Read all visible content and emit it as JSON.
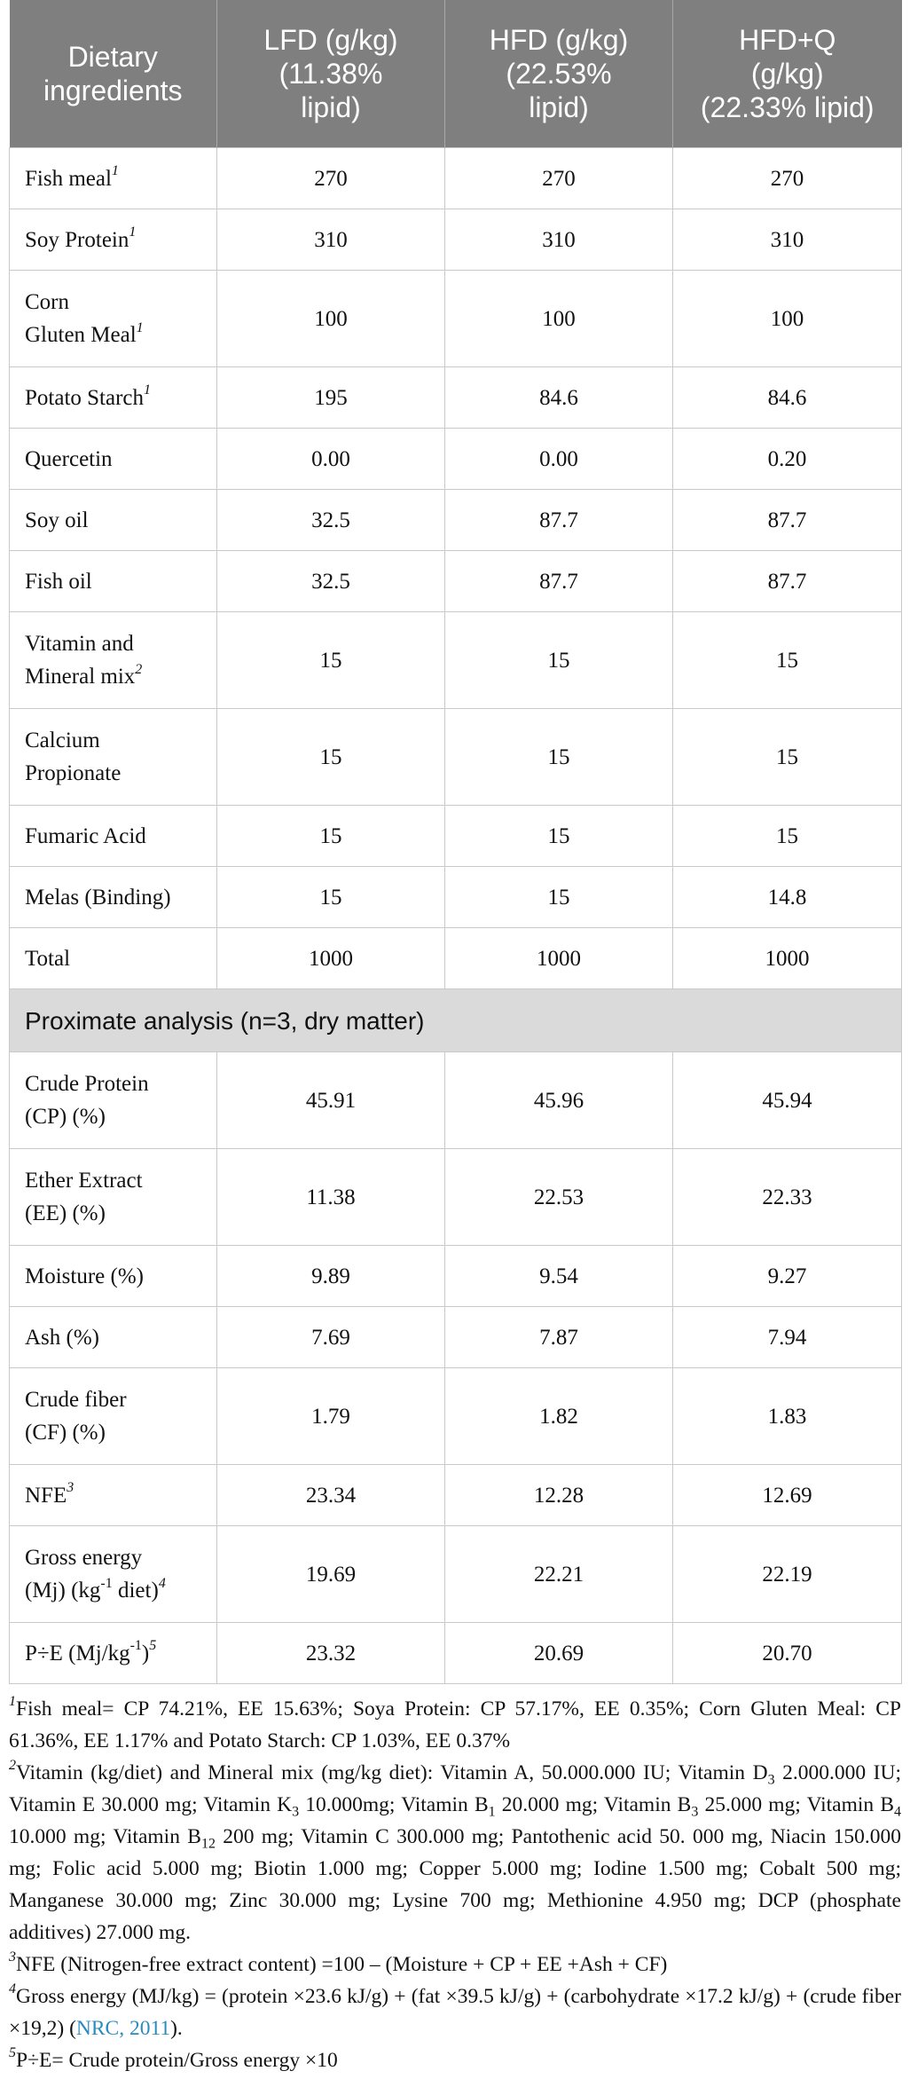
{
  "header": {
    "col1": [
      "Dietary",
      "ingredients"
    ],
    "col2": [
      "LFD (g/kg)",
      "(11.38%",
      "lipid)"
    ],
    "col3": [
      "HFD (g/kg)",
      "(22.53%",
      "lipid)"
    ],
    "col4": [
      "HFD+Q",
      "(g/kg)",
      "(22.33% lipid)"
    ]
  },
  "ingredients": [
    {
      "label": [
        "Fish meal"
      ],
      "sup": "1",
      "values": [
        "270",
        "270",
        "270"
      ]
    },
    {
      "label": [
        "Soy Protein"
      ],
      "sup": "1",
      "values": [
        "310",
        "310",
        "310"
      ]
    },
    {
      "label": [
        "Corn",
        "Gluten Meal"
      ],
      "sup": "1",
      "values": [
        "100",
        "100",
        "100"
      ]
    },
    {
      "label": [
        "Potato Starch"
      ],
      "sup": "1",
      "values": [
        "195",
        "84.6",
        "84.6"
      ]
    },
    {
      "label": [
        "Quercetin"
      ],
      "sup": "",
      "values": [
        "0.00",
        "0.00",
        "0.20"
      ]
    },
    {
      "label": [
        "Soy oil"
      ],
      "sup": "",
      "values": [
        "32.5",
        "87.7",
        "87.7"
      ]
    },
    {
      "label": [
        "Fish oil"
      ],
      "sup": "",
      "values": [
        "32.5",
        "87.7",
        "87.7"
      ]
    },
    {
      "label": [
        "Vitamin and",
        "Mineral mix"
      ],
      "sup": "2",
      "values": [
        "15",
        "15",
        "15"
      ]
    },
    {
      "label": [
        "Calcium",
        "Propionate"
      ],
      "sup": "",
      "values": [
        "15",
        "15",
        "15"
      ]
    },
    {
      "label": [
        "Fumaric Acid"
      ],
      "sup": "",
      "values": [
        "15",
        "15",
        "15"
      ]
    },
    {
      "label": [
        "Melas (Binding)"
      ],
      "sup": "",
      "values": [
        "15",
        "15",
        "14.8"
      ]
    },
    {
      "label": [
        "Total"
      ],
      "sup": "",
      "values": [
        "1000",
        "1000",
        "1000"
      ]
    }
  ],
  "section_title": "Proximate analysis (n=3, dry matter)",
  "proximate": [
    {
      "label": [
        "Crude Protein",
        "(CP) (%)"
      ],
      "values": [
        "45.91",
        "45.96",
        "45.94"
      ]
    },
    {
      "label": [
        "Ether Extract",
        "(EE) (%)"
      ],
      "values": [
        "11.38",
        "22.53",
        "22.33"
      ]
    },
    {
      "label": [
        "Moisture (%)"
      ],
      "values": [
        "9.89",
        "9.54",
        "9.27"
      ]
    },
    {
      "label": [
        "Ash (%)"
      ],
      "values": [
        "7.69",
        "7.87",
        "7.94"
      ]
    },
    {
      "label": [
        "Crude fiber",
        "(CF) (%)"
      ],
      "values": [
        "1.79",
        "1.82",
        "1.83"
      ]
    },
    {
      "label_main": "NFE",
      "label_sup": "3",
      "values": [
        "23.34",
        "12.28",
        "12.69"
      ]
    },
    {
      "label_line1": "Gross energy",
      "label_line2a": "(Mj) (kg",
      "label_line2sup": "-1",
      "label_line2b": " diet)",
      "label_sup": "4",
      "values": [
        "19.69",
        "22.21",
        "22.19"
      ]
    },
    {
      "label_a": "P÷E (Mj/kg",
      "label_asup": "-1",
      "label_b": ")",
      "label_sup": "5",
      "values": [
        "23.32",
        "20.69",
        "20.70"
      ]
    }
  ],
  "notes": {
    "n1": {
      "num": "1",
      "text": "Fish meal= CP 74.21%, EE 15.63%; Soya Protein: CP 57.17%, EE 0.35%; Corn Gluten Meal: CP 61.36%, EE 1.17% and Potato Starch: CP 1.03%, EE 0.37%"
    },
    "n2": {
      "num": "2",
      "t1": "Vitamin (kg/diet) and Mineral mix (mg/kg diet): Vitamin A, 50.000.000 IU; Vitamin D",
      "s1": "3",
      "t2": " 2.000.000 IU; Vitamin E 30.000 mg; Vitamin K",
      "s2": "3",
      "t3": " 10.000mg; Vitamin B",
      "s3": "1",
      "t4": " 20.000 mg; Vitamin B",
      "s4": "3",
      "t5": " 25.000 mg; Vitamin B",
      "s5": "4",
      "t6": " 10.000 mg; Vitamin B",
      "s6": "12",
      "t7": " 200 mg; Vitamin C 300.000 mg; Pantothenic acid 50. 000 mg, Niacin 150.000 mg; Folic acid 5.000 mg; Biotin 1.000 mg; Copper 5.000 mg; Iodine 1.500 mg; Cobalt 500 mg; Manganese 30.000 mg; Zinc 30.000 mg; Lysine 700 mg; Methionine 4.950 mg; DCP (phosphate additives) 27.000 mg."
    },
    "n3": {
      "num": "3",
      "text": "NFE (Nitrogen-free extract content) =100 – (Moisture + CP + EE +Ash + CF)"
    },
    "n4": {
      "num": "4",
      "text": "Gross energy (MJ/kg) = (protein ×23.6 kJ/g) + (fat ×39.5 kJ/g) + (carbohydrate ×17.2 kJ/g) + (crude fiber ×19,2) (",
      "link": "NRC, 2011",
      "after": ")."
    },
    "n5": {
      "num": "5",
      "text": "P÷E= Crude protein/Gross energy ×10"
    }
  }
}
